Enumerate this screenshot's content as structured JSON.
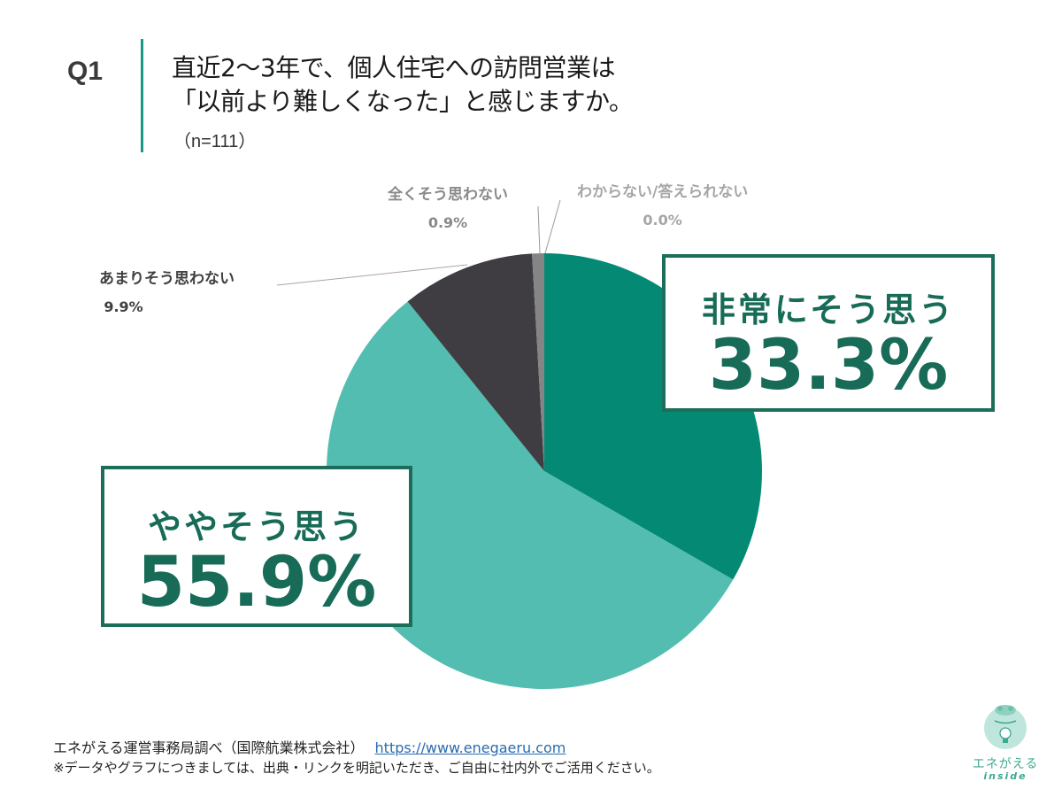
{
  "question": {
    "number": "Q1",
    "title_line1": "直近2〜3年で、個人住宅への訪問営業は",
    "title_line2": "「以前より難しくなった」と感じますか。",
    "sample_size": "（n=111）"
  },
  "chart_data": {
    "type": "pie",
    "title": "直近2〜3年で、個人住宅への訪問営業は「以前より難しくなった」と感じますか。",
    "n": 111,
    "start_angle": "12 o'clock",
    "direction": "clockwise",
    "categories": [
      "非常にそう思う",
      "ややそう思う",
      "あまりそう思わない",
      "全くそう思わない",
      "わからない/答えられない"
    ],
    "values": [
      33.3,
      55.9,
      9.9,
      0.9,
      0.0
    ],
    "colors": [
      "#048a74",
      "#52bdb0",
      "#403d42",
      "#858585",
      "#b5b5b5"
    ],
    "legend": "none (callout and leader-line labels)"
  },
  "labels": {
    "strongly_agree": {
      "label": "非常にそう思う",
      "value": "33.3%"
    },
    "somewhat_agree": {
      "label": "ややそう思う",
      "value": "55.9%"
    },
    "not_much": {
      "label": "あまりそう思わない",
      "value": "9.9%"
    },
    "not_at_all": {
      "label": "全くそう思わない",
      "value": "0.9%"
    },
    "dont_know": {
      "label": "わからない/答えられない",
      "value": "0.0%"
    }
  },
  "colors": {
    "accent_bar": "#1a9a84",
    "callout_border": "#1c6e5a",
    "callout_text": "#176b57"
  },
  "footer": {
    "source": "エネがえる運営事務局調べ（国際航業株式会社）",
    "link": "https://www.enegaeru.com",
    "note": "※データやグラフにつきましては、出典・リンクを明記いただき、ご自由に社内外でご活用ください。"
  },
  "logo": {
    "brand": "エネがえる",
    "sub": "inside"
  }
}
